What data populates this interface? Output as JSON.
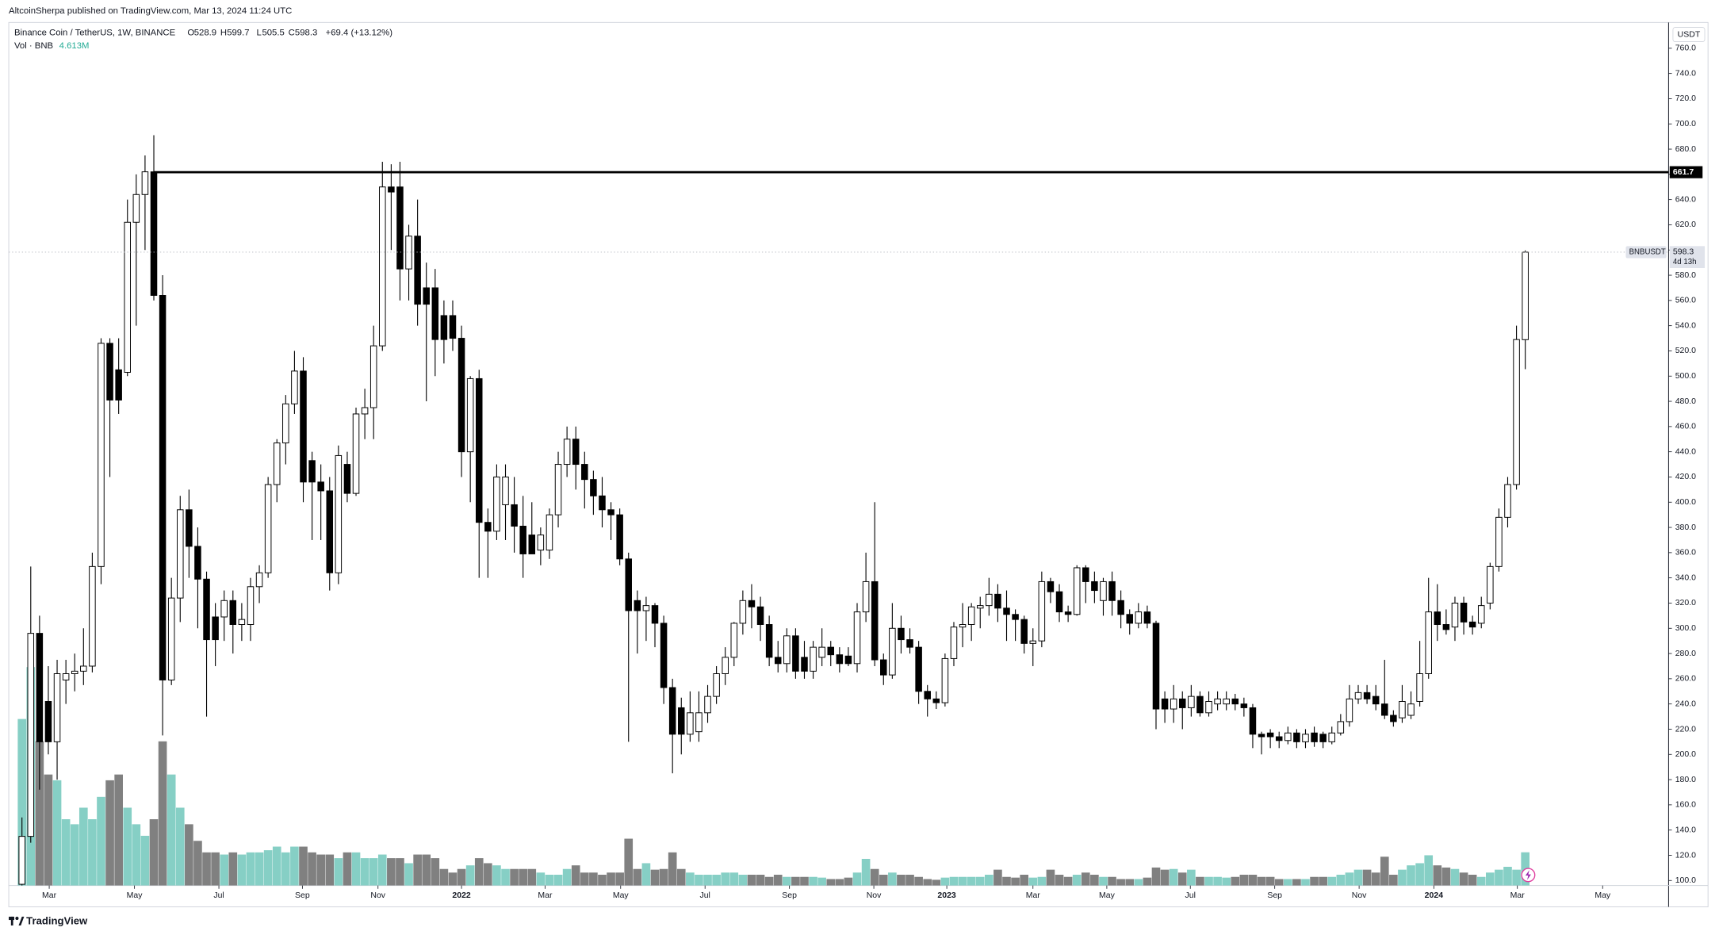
{
  "header": {
    "publisher": "AltcoinSherpa published on TradingView.com, Mar 13, 2024 11:24 UTC"
  },
  "footer": {
    "brand": "TradingView"
  },
  "chart_data": {
    "type": "candlestick",
    "symbol": "Binance Coin / TetherUS, 1W, BINANCE",
    "ohlc_letters": [
      "O",
      "H",
      "L",
      "C"
    ],
    "change_label": "+69.4 (+13.12%)",
    "currency": "USDT",
    "ticker": "BNBUSDT",
    "countdown": "4d 13h",
    "up_color": "#ffffff",
    "down_color": "#000000",
    "wick_color": "#000000",
    "candles": [
      [
        97,
        150,
        96,
        135
      ],
      [
        135,
        349,
        130,
        296
      ],
      [
        296,
        310,
        172,
        210
      ],
      [
        242,
        270,
        200,
        210
      ],
      [
        210,
        275,
        180,
        264
      ],
      [
        259,
        275,
        240,
        264
      ],
      [
        264,
        280,
        250,
        266
      ],
      [
        266,
        300,
        255,
        270
      ],
      [
        270,
        360,
        265,
        349
      ],
      [
        349,
        530,
        335,
        526
      ],
      [
        526,
        530,
        420,
        481
      ],
      [
        505,
        530,
        470,
        481
      ],
      [
        503,
        640,
        500,
        622
      ],
      [
        622,
        660,
        540,
        644
      ],
      [
        644,
        675,
        600,
        662
      ],
      [
        662,
        691,
        560,
        564
      ],
      [
        564,
        580,
        215,
        259
      ],
      [
        259,
        340,
        255,
        324
      ],
      [
        324,
        405,
        305,
        394
      ],
      [
        394,
        410,
        340,
        365
      ],
      [
        365,
        380,
        300,
        339
      ],
      [
        339,
        345,
        230,
        291
      ],
      [
        309,
        320,
        270,
        291
      ],
      [
        309,
        330,
        290,
        322
      ],
      [
        322,
        330,
        280,
        303
      ],
      [
        303,
        320,
        290,
        307
      ],
      [
        303,
        340,
        290,
        333
      ],
      [
        333,
        350,
        320,
        344
      ],
      [
        344,
        420,
        340,
        414
      ],
      [
        414,
        450,
        400,
        447
      ],
      [
        447,
        485,
        430,
        478
      ],
      [
        478,
        520,
        470,
        504
      ],
      [
        504,
        515,
        400,
        416
      ],
      [
        433,
        440,
        370,
        416
      ],
      [
        416,
        430,
        370,
        409
      ],
      [
        409,
        420,
        330,
        344
      ],
      [
        344,
        445,
        335,
        437
      ],
      [
        430,
        440,
        400,
        407
      ],
      [
        407,
        475,
        405,
        470
      ],
      [
        470,
        490,
        450,
        475
      ],
      [
        475,
        540,
        450,
        524
      ],
      [
        524,
        670,
        520,
        650
      ],
      [
        650,
        668,
        600,
        646
      ],
      [
        650,
        670,
        560,
        585
      ],
      [
        585,
        620,
        560,
        611
      ],
      [
        611,
        640,
        540,
        557
      ],
      [
        570,
        590,
        480,
        557
      ],
      [
        570,
        585,
        500,
        529
      ],
      [
        548,
        560,
        510,
        529
      ],
      [
        548,
        560,
        520,
        530
      ],
      [
        530,
        540,
        420,
        440
      ],
      [
        440,
        500,
        400,
        498
      ],
      [
        498,
        505,
        340,
        384
      ],
      [
        384,
        395,
        340,
        377
      ],
      [
        377,
        430,
        370,
        420
      ],
      [
        398,
        430,
        370,
        420
      ],
      [
        398,
        420,
        360,
        381
      ],
      [
        381,
        405,
        340,
        359
      ],
      [
        374,
        400,
        360,
        359
      ],
      [
        362,
        380,
        350,
        374
      ],
      [
        362,
        395,
        355,
        390
      ],
      [
        390,
        440,
        380,
        430
      ],
      [
        430,
        460,
        420,
        450
      ],
      [
        450,
        460,
        410,
        430
      ],
      [
        430,
        440,
        395,
        418
      ],
      [
        418,
        425,
        390,
        405
      ],
      [
        405,
        420,
        380,
        394
      ],
      [
        394,
        400,
        370,
        390
      ],
      [
        390,
        395,
        350,
        355
      ],
      [
        355,
        360,
        210,
        314
      ],
      [
        322,
        330,
        280,
        314
      ],
      [
        314,
        325,
        290,
        318
      ],
      [
        318,
        320,
        285,
        304
      ],
      [
        304,
        310,
        240,
        253
      ],
      [
        253,
        260,
        185,
        216
      ],
      [
        237,
        245,
        200,
        216
      ],
      [
        216,
        250,
        210,
        233
      ],
      [
        218,
        250,
        210,
        233
      ],
      [
        233,
        255,
        225,
        246
      ],
      [
        246,
        270,
        240,
        264
      ],
      [
        264,
        285,
        255,
        277
      ],
      [
        277,
        305,
        270,
        304
      ],
      [
        304,
        330,
        295,
        322
      ],
      [
        322,
        335,
        300,
        317
      ],
      [
        317,
        325,
        290,
        303
      ],
      [
        303,
        310,
        270,
        277
      ],
      [
        277,
        290,
        265,
        272
      ],
      [
        272,
        300,
        265,
        294
      ],
      [
        294,
        300,
        260,
        266
      ],
      [
        277,
        290,
        260,
        266
      ],
      [
        266,
        290,
        260,
        285
      ],
      [
        277,
        300,
        270,
        285
      ],
      [
        285,
        290,
        270,
        279
      ],
      [
        279,
        285,
        265,
        272
      ],
      [
        278,
        285,
        270,
        272
      ],
      [
        272,
        320,
        265,
        313
      ],
      [
        313,
        360,
        305,
        337
      ],
      [
        337,
        400,
        270,
        275
      ],
      [
        275,
        280,
        255,
        263
      ],
      [
        263,
        320,
        260,
        300
      ],
      [
        300,
        310,
        280,
        291
      ],
      [
        291,
        300,
        280,
        285
      ],
      [
        285,
        290,
        240,
        250
      ],
      [
        250,
        255,
        230,
        244
      ],
      [
        244,
        250,
        236,
        241
      ],
      [
        241,
        280,
        238,
        276
      ],
      [
        276,
        305,
        270,
        301
      ],
      [
        301,
        320,
        285,
        303
      ],
      [
        303,
        320,
        290,
        317
      ],
      [
        316,
        325,
        300,
        318
      ],
      [
        318,
        340,
        310,
        327
      ],
      [
        327,
        335,
        305,
        316
      ],
      [
        316,
        330,
        290,
        311
      ],
      [
        311,
        315,
        290,
        307
      ],
      [
        307,
        310,
        280,
        288
      ],
      [
        288,
        300,
        270,
        290
      ],
      [
        290,
        345,
        285,
        337
      ],
      [
        337,
        340,
        320,
        329
      ],
      [
        329,
        335,
        305,
        313
      ],
      [
        313,
        318,
        305,
        311
      ],
      [
        311,
        350,
        310,
        348
      ],
      [
        348,
        350,
        320,
        337
      ],
      [
        337,
        345,
        320,
        330
      ],
      [
        322,
        340,
        310,
        337
      ],
      [
        337,
        345,
        310,
        322
      ],
      [
        322,
        330,
        300,
        311
      ],
      [
        311,
        315,
        295,
        304
      ],
      [
        304,
        320,
        300,
        313
      ],
      [
        313,
        318,
        300,
        304
      ],
      [
        304,
        306,
        220,
        236
      ],
      [
        244,
        250,
        225,
        236
      ],
      [
        236,
        255,
        225,
        244
      ],
      [
        244,
        250,
        220,
        237
      ],
      [
        237,
        255,
        230,
        246
      ],
      [
        246,
        250,
        230,
        233
      ],
      [
        233,
        250,
        230,
        242
      ],
      [
        240,
        250,
        235,
        244
      ],
      [
        240,
        250,
        235,
        244
      ],
      [
        244,
        248,
        235,
        240
      ],
      [
        240,
        245,
        230,
        237
      ],
      [
        237,
        240,
        205,
        216
      ],
      [
        216,
        218,
        200,
        214
      ],
      [
        217,
        220,
        205,
        214
      ],
      [
        214,
        218,
        205,
        211
      ],
      [
        211,
        222,
        208,
        217
      ],
      [
        217,
        220,
        205,
        210
      ],
      [
        210,
        220,
        205,
        216
      ],
      [
        217,
        222,
        206,
        210
      ],
      [
        216,
        218,
        205,
        210
      ],
      [
        210,
        222,
        208,
        217
      ],
      [
        217,
        232,
        215,
        226
      ],
      [
        226,
        255,
        222,
        244
      ],
      [
        244,
        255,
        240,
        249
      ],
      [
        249,
        255,
        240,
        244
      ],
      [
        246,
        255,
        235,
        240
      ],
      [
        240,
        275,
        228,
        231
      ],
      [
        231,
        235,
        222,
        226
      ],
      [
        229,
        255,
        225,
        242
      ],
      [
        231,
        250,
        228,
        240
      ],
      [
        242,
        290,
        238,
        264
      ],
      [
        264,
        340,
        260,
        313
      ],
      [
        313,
        335,
        290,
        303
      ],
      [
        303,
        315,
        295,
        299
      ],
      [
        301,
        325,
        290,
        320
      ],
      [
        320,
        325,
        295,
        305
      ],
      [
        305,
        310,
        295,
        301
      ],
      [
        304,
        325,
        300,
        318
      ],
      [
        320,
        352,
        315,
        349
      ],
      [
        349,
        395,
        345,
        388
      ],
      [
        388,
        420,
        380,
        414
      ],
      [
        414,
        540,
        410,
        529
      ],
      [
        528.9,
        599.7,
        505.5,
        598.3
      ]
    ],
    "volume": {
      "name": "Vol · BNB",
      "last_label": "4.613M",
      "up_color": "#86cfc5",
      "down_color": "#808080",
      "values": [
        23100000,
        30300000,
        20000000,
        15400000,
        14600000,
        9200000,
        8500000,
        10800000,
        9200000,
        12300000,
        14600000,
        15400000,
        10800000,
        8500000,
        6900000,
        9200000,
        20000000,
        15400000,
        10800000,
        8500000,
        6200000,
        4600000,
        4600000,
        4300000,
        4600000,
        4300000,
        4600000,
        4600000,
        4900000,
        5400000,
        4600000,
        5400000,
        5400000,
        4600000,
        4300000,
        4300000,
        3800000,
        4600000,
        4600000,
        3800000,
        3800000,
        4300000,
        3800000,
        3800000,
        3100000,
        4300000,
        4300000,
        3800000,
        2300000,
        1800000,
        2300000,
        2800000,
        3800000,
        3100000,
        2800000,
        2300000,
        2300000,
        2300000,
        2300000,
        1800000,
        1500000,
        1500000,
        2300000,
        2800000,
        1800000,
        1800000,
        1500000,
        1800000,
        1800000,
        6500000,
        2300000,
        3100000,
        2200000,
        2300000,
        4600000,
        2300000,
        1800000,
        1500000,
        1500000,
        1500000,
        1800000,
        1800000,
        1500000,
        1500000,
        1500000,
        1200000,
        1500000,
        1200000,
        1200000,
        1200000,
        1200000,
        1100000,
        900000,
        900000,
        1100000,
        1800000,
        3700000,
        2300000,
        1500000,
        1800000,
        1500000,
        1500000,
        1200000,
        900000,
        800000,
        1100000,
        1200000,
        1200000,
        1200000,
        1200000,
        1500000,
        2200000,
        1200000,
        1100000,
        1500000,
        1100000,
        1200000,
        2200000,
        1500000,
        1200000,
        1500000,
        1800000,
        1500000,
        1200000,
        1200000,
        900000,
        900000,
        900000,
        1100000,
        2500000,
        2200000,
        2300000,
        1800000,
        2200000,
        1200000,
        1200000,
        1200000,
        1100000,
        1200000,
        1500000,
        1500000,
        1200000,
        1200000,
        900000,
        900000,
        900000,
        900000,
        1200000,
        1200000,
        1200000,
        1500000,
        1800000,
        2200000,
        2200000,
        1800000,
        4000000,
        1500000,
        2200000,
        2800000,
        3100000,
        4200000,
        2800000,
        2500000,
        2300000,
        1800000,
        1500000,
        1200000,
        1800000,
        2200000,
        2600000,
        2200000,
        4613000
      ]
    },
    "vlim": [
      0,
      40000000
    ],
    "level": 661.7,
    "level_color": "#000000",
    "ylim": [
      96,
      780
    ],
    "yticks": [
      {
        "value": 100,
        "label": "100.0"
      },
      {
        "value": 120,
        "label": "120.0"
      },
      {
        "value": 140,
        "label": "140.0"
      },
      {
        "value": 160,
        "label": "160.0"
      },
      {
        "value": 180,
        "label": "180.0"
      },
      {
        "value": 200,
        "label": "200.0"
      },
      {
        "value": 220,
        "label": "220.0"
      },
      {
        "value": 240,
        "label": "240.0"
      },
      {
        "value": 260,
        "label": "260.0"
      },
      {
        "value": 280,
        "label": "280.0"
      },
      {
        "value": 300,
        "label": "300.0"
      },
      {
        "value": 320,
        "label": "320.0"
      },
      {
        "value": 340,
        "label": "340.0"
      },
      {
        "value": 360,
        "label": "360.0"
      },
      {
        "value": 380,
        "label": "380.0"
      },
      {
        "value": 400,
        "label": "400.0"
      },
      {
        "value": 420,
        "label": "420.0"
      },
      {
        "value": 440,
        "label": "440.0"
      },
      {
        "value": 460,
        "label": "460.0"
      },
      {
        "value": 480,
        "label": "480.0"
      },
      {
        "value": 500,
        "label": "500.0"
      },
      {
        "value": 520,
        "label": "520.0"
      },
      {
        "value": 540,
        "label": "540.0"
      },
      {
        "value": 560,
        "label": "560.0"
      },
      {
        "value": 580,
        "label": "580.0"
      },
      {
        "value": 600,
        "label": "600.0"
      },
      {
        "value": 620,
        "label": "620.0"
      },
      {
        "value": 640,
        "label": "640.0"
      },
      {
        "value": 660,
        "label": "660.0"
      },
      {
        "value": 680,
        "label": "680.0"
      },
      {
        "value": 700,
        "label": "700.0"
      },
      {
        "value": 720,
        "label": "720.0"
      },
      {
        "value": 740,
        "label": "740.0"
      },
      {
        "value": 760,
        "label": "760.0"
      }
    ],
    "xlim": [
      -1.5,
      187.3
    ],
    "xticks": [
      {
        "value": 3.1,
        "label": "Mar"
      },
      {
        "value": 12.8,
        "label": "May"
      },
      {
        "value": 22.4,
        "label": "Jul"
      },
      {
        "value": 31.9,
        "label": "Sep"
      },
      {
        "value": 40.5,
        "label": "Nov"
      },
      {
        "value": 50.0,
        "label": "2022"
      },
      {
        "value": 59.5,
        "label": "Mar"
      },
      {
        "value": 68.1,
        "label": "May"
      },
      {
        "value": 77.7,
        "label": "Jul"
      },
      {
        "value": 87.3,
        "label": "Sep"
      },
      {
        "value": 96.9,
        "label": "Nov"
      },
      {
        "value": 105.2,
        "label": "2023"
      },
      {
        "value": 115.0,
        "label": "Mar"
      },
      {
        "value": 123.4,
        "label": "May"
      },
      {
        "value": 132.9,
        "label": "Jul"
      },
      {
        "value": 142.5,
        "label": "Sep"
      },
      {
        "value": 152.1,
        "label": "Nov"
      },
      {
        "value": 160.6,
        "label": "2024"
      },
      {
        "value": 170.1,
        "label": "Mar"
      },
      {
        "value": 179.8,
        "label": "May"
      }
    ]
  }
}
